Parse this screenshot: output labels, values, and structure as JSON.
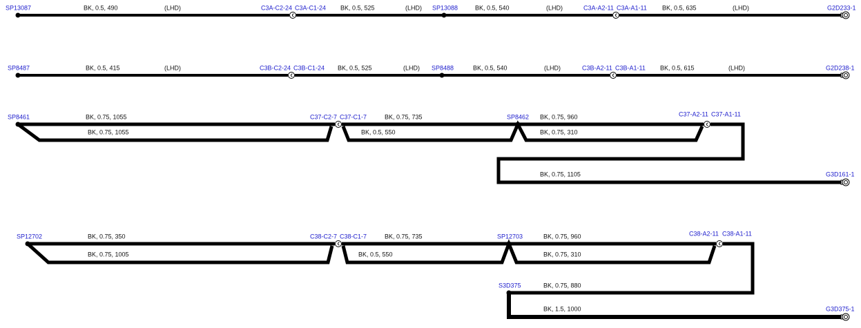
{
  "circuits": [
    {
      "labels": [
        "SP13087",
        "BK, 0.5, 490",
        "(LHD)",
        "C3A-C2-24",
        "C3A-C1-24",
        "BK, 0.5, 525",
        "(LHD)",
        "SP13088",
        "BK, 0.5, 540",
        "(LHD)",
        "C3A-A2-11",
        "C3A-A1-11",
        "BK, 0.5, 635",
        "(LHD)",
        "G2D233-1"
      ]
    },
    {
      "labels": [
        "SP8487",
        "BK, 0.5, 415",
        "(LHD)",
        "C3B-C2-24",
        "C3B-C1-24",
        "BK, 0.5, 525",
        "(LHD)",
        "SP8488",
        "BK, 0.5, 540",
        "(LHD)",
        "C3B-A2-11",
        "C3B-A1-11",
        "BK, 0.5, 615",
        "(LHD)",
        "G2D238-1"
      ]
    },
    {
      "labels": [
        "SP8461",
        "BK, 0.75, 1055",
        "BK, 0.75, 1055",
        "C37-C2-7",
        "C37-C1-7",
        "BK, 0.75, 735",
        "BK, 0.5, 550",
        "SP8462",
        "BK, 0.75, 960",
        "BK, 0.75, 310",
        "C37-A2-11",
        "C37-A1-11",
        "BK, 0.75, 1105",
        "G3D161-1"
      ]
    },
    {
      "labels": [
        "SP12702",
        "BK, 0.75, 350",
        "BK, 0.75, 1005",
        "C38-C2-7",
        "C38-C1-7",
        "BK, 0.75, 735",
        "BK, 0.5, 550",
        "SP12703",
        "BK, 0.75, 960",
        "BK, 0.75, 310",
        "C38-A2-11",
        "C38-A1-11",
        "S3D375",
        "BK, 0.75, 880",
        "BK, 1.5, 1000",
        "G3D375-1"
      ]
    }
  ]
}
